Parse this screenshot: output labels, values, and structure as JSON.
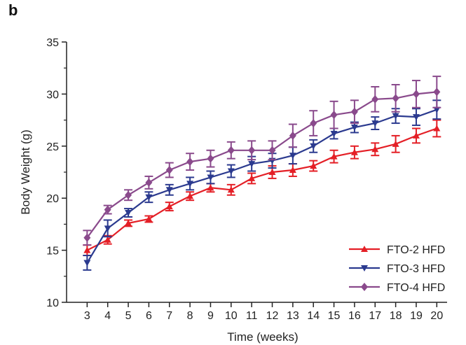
{
  "panel_label": "b",
  "chart_data": {
    "type": "line",
    "xlabel": "Time (weeks)",
    "ylabel": "Body Weight (g)",
    "x": [
      3,
      4,
      5,
      6,
      7,
      8,
      9,
      10,
      11,
      12,
      13,
      14,
      15,
      16,
      17,
      18,
      19,
      20
    ],
    "xlim": [
      2,
      20.5
    ],
    "ylim": [
      10,
      35
    ],
    "yticks": [
      10,
      15,
      20,
      25,
      30,
      35
    ],
    "grid": false,
    "legend_position": "bottom-right",
    "series": [
      {
        "name": "FTO-2 HFD",
        "color": "#e41f26",
        "marker": "triangle-up",
        "values": [
          15.0,
          16.0,
          17.6,
          18.0,
          19.2,
          20.2,
          21.0,
          20.8,
          21.9,
          22.5,
          22.7,
          23.1,
          24.0,
          24.4,
          24.7,
          25.2,
          26.0,
          26.7
        ],
        "errors": [
          0.5,
          0.4,
          0.3,
          0.3,
          0.4,
          0.4,
          0.4,
          0.5,
          0.5,
          0.6,
          0.6,
          0.5,
          0.6,
          0.6,
          0.6,
          0.8,
          0.7,
          0.8
        ]
      },
      {
        "name": "FTO-3 HFD",
        "color": "#2b3a8f",
        "marker": "triangle-down",
        "values": [
          13.8,
          17.1,
          18.6,
          20.1,
          20.8,
          21.4,
          22.0,
          22.6,
          23.3,
          23.6,
          24.1,
          25.0,
          26.2,
          26.8,
          27.2,
          27.9,
          27.8,
          28.5
        ],
        "errors": [
          0.7,
          0.8,
          0.4,
          0.5,
          0.5,
          0.6,
          0.6,
          0.6,
          0.7,
          0.7,
          0.8,
          0.6,
          0.5,
          0.5,
          0.6,
          0.7,
          0.8,
          0.9
        ]
      },
      {
        "name": "FTO-4 HFD",
        "color": "#8a4a8c",
        "marker": "diamond",
        "values": [
          16.2,
          18.9,
          20.3,
          21.5,
          22.7,
          23.5,
          23.8,
          24.6,
          24.6,
          24.6,
          26.0,
          27.2,
          28.0,
          28.3,
          29.5,
          29.6,
          30.0,
          30.2
        ],
        "errors": [
          0.7,
          0.4,
          0.5,
          0.6,
          0.7,
          0.8,
          0.8,
          0.8,
          0.9,
          0.9,
          1.1,
          1.2,
          1.3,
          1.1,
          1.2,
          1.3,
          1.3,
          1.5
        ]
      }
    ]
  }
}
